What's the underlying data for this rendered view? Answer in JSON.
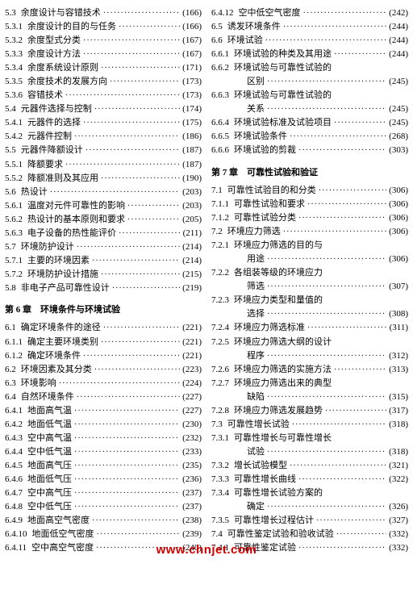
{
  "watermark": "www.chnjet.com",
  "columns": [
    {
      "items": [
        {
          "type": "entry",
          "num": "5.3",
          "title": "余度设计与容错技术",
          "page": "(166)"
        },
        {
          "type": "entry",
          "num": "5.3.1",
          "title": "余度设计的目的与任务",
          "page": "(166)"
        },
        {
          "type": "entry",
          "num": "5.3.2",
          "title": "余度型式分类",
          "page": "(167)"
        },
        {
          "type": "entry",
          "num": "5.3.3",
          "title": "余度设计方法",
          "page": "(167)"
        },
        {
          "type": "entry",
          "num": "5.3.4",
          "title": "余度系统设计原则",
          "page": "(171)"
        },
        {
          "type": "entry",
          "num": "5.3.5",
          "title": "余度技术的发展方向",
          "page": "(173)"
        },
        {
          "type": "entry",
          "num": "5.3.6",
          "title": "容错技术",
          "page": "(173)"
        },
        {
          "type": "entry",
          "num": "5.4",
          "title": "元器件选择与控制",
          "page": "(174)"
        },
        {
          "type": "entry",
          "num": "5.4.1",
          "title": "元器件的选择",
          "page": "(175)"
        },
        {
          "type": "entry",
          "num": "5.4.2",
          "title": "元器件控制",
          "page": "(186)"
        },
        {
          "type": "entry",
          "num": "5.5",
          "title": "元器件降额设计",
          "page": "(187)"
        },
        {
          "type": "entry",
          "num": "5.5.1",
          "title": "降额要求",
          "page": "(187)"
        },
        {
          "type": "entry",
          "num": "5.5.2",
          "title": "降额准则及其应用",
          "page": "(190)"
        },
        {
          "type": "entry",
          "num": "5.6",
          "title": "热设计",
          "page": "(203)"
        },
        {
          "type": "entry",
          "num": "5.6.1",
          "title": "温度对元件可靠性的影响",
          "page": "(203)"
        },
        {
          "type": "entry",
          "num": "5.6.2",
          "title": "热设计的基本原则和要求",
          "page": "(205)"
        },
        {
          "type": "entry",
          "num": "5.6.3",
          "title": "电子设备的热性能评价",
          "page": "(211)"
        },
        {
          "type": "entry",
          "num": "5.7",
          "title": "环境防护设计",
          "page": "(214)"
        },
        {
          "type": "entry",
          "num": "5.7.1",
          "title": "主要的环境因素",
          "page": "(214)"
        },
        {
          "type": "entry",
          "num": "5.7.2",
          "title": "环境防护设计措施",
          "page": "(215)"
        },
        {
          "type": "entry",
          "num": "5.8",
          "title": "非电子产品可靠性设计",
          "page": "(219)"
        },
        {
          "type": "chapter",
          "text": "第 6 章　环境条件与环境试验"
        },
        {
          "type": "entry",
          "num": "6.1",
          "title": "确定环境条件的途径",
          "page": "(221)"
        },
        {
          "type": "entry",
          "num": "6.1.1",
          "title": "确定主要环境类别",
          "page": "(221)"
        },
        {
          "type": "entry",
          "num": "6.1.2",
          "title": "确定环境条件",
          "page": "(221)"
        },
        {
          "type": "entry",
          "num": "6.2",
          "title": "环境因素及其分类",
          "page": "(223)"
        },
        {
          "type": "entry",
          "num": "6.3",
          "title": "环境影响",
          "page": "(224)"
        },
        {
          "type": "entry",
          "num": "6.4",
          "title": "自然环境条件",
          "page": "(227)"
        },
        {
          "type": "entry",
          "num": "6.4.1",
          "title": "地面高气温",
          "page": "(227)"
        },
        {
          "type": "entry",
          "num": "6.4.2",
          "title": "地面低气温",
          "page": "(230)"
        },
        {
          "type": "entry",
          "num": "6.4.3",
          "title": "空中高气温",
          "page": "(232)"
        },
        {
          "type": "entry",
          "num": "6.4.4",
          "title": "空中低气温",
          "page": "(233)"
        },
        {
          "type": "entry",
          "num": "6.4.5",
          "title": "地面高气压",
          "page": "(235)"
        },
        {
          "type": "entry",
          "num": "6.4.6",
          "title": "地面低气压",
          "page": "(236)"
        },
        {
          "type": "entry",
          "num": "6.4.7",
          "title": "空中高气压",
          "page": "(237)"
        },
        {
          "type": "entry",
          "num": "6.4.8",
          "title": "空中低气压",
          "page": "(237)"
        },
        {
          "type": "entry",
          "num": "6.4.9",
          "title": "地面高空气密度",
          "page": "(238)"
        },
        {
          "type": "entry",
          "num": "6.4.10",
          "title": "地面低空气密度",
          "page": "(239)"
        },
        {
          "type": "entry",
          "num": "6.4.11",
          "title": "空中高空气密度",
          "page": "(240)"
        }
      ]
    },
    {
      "items": [
        {
          "type": "entry",
          "num": "6.4.12",
          "title": "空中低空气密度",
          "page": "(242)"
        },
        {
          "type": "entry",
          "num": "6.5",
          "title": "诱发环境条件",
          "page": "(244)"
        },
        {
          "type": "entry",
          "num": "6.6",
          "title": "环境试验",
          "page": "(244)"
        },
        {
          "type": "entry",
          "num": "6.6.1",
          "title": "环境试验的种类及其用途",
          "page": "(244)"
        },
        {
          "type": "wrap",
          "num": "6.6.2",
          "line1": "环境试验与可靠性试验的",
          "line2": "区别",
          "page": "(245)"
        },
        {
          "type": "wrap",
          "num": "6.6.3",
          "line1": "环境试验与可靠性试验的",
          "line2": "关系",
          "page": "(245)"
        },
        {
          "type": "entry",
          "num": "6.6.4",
          "title": "环境试验标准及试验项目",
          "page": "(245)"
        },
        {
          "type": "entry",
          "num": "6.6.5",
          "title": "环境试验条件",
          "page": "(268)"
        },
        {
          "type": "entry",
          "num": "6.6.6",
          "title": "环境试验的剪裁",
          "page": "(303)"
        },
        {
          "type": "chapter",
          "text": "第 7 章　可靠性试验和验证"
        },
        {
          "type": "entry",
          "num": "7.1",
          "title": "可靠性试验目的和分类",
          "page": "(306)"
        },
        {
          "type": "entry",
          "num": "7.1.1",
          "title": "可靠性试验和要求",
          "page": "(306)"
        },
        {
          "type": "entry",
          "num": "7.1.2",
          "title": "可靠性试验分类",
          "page": "(306)"
        },
        {
          "type": "entry",
          "num": "7.2",
          "title": "环境应力筛选",
          "page": "(306)"
        },
        {
          "type": "wrap",
          "num": "7.2.1",
          "line1": "环境应力筛选的目的与",
          "line2": "用途",
          "page": "(306)"
        },
        {
          "type": "wrap",
          "num": "7.2.2",
          "line1": "各组装等级的环境应力",
          "line2": "筛选",
          "page": "(307)"
        },
        {
          "type": "wrap",
          "num": "7.2.3",
          "line1": "环境应力类型和量值的",
          "line2": "选择",
          "page": "(308)"
        },
        {
          "type": "entry",
          "num": "7.2.4",
          "title": "环境应力筛选标准",
          "page": "(311)"
        },
        {
          "type": "wrap",
          "num": "7.2.5",
          "line1": "环境应力筛选大纲的设计",
          "line2": "程序",
          "page": "(312)"
        },
        {
          "type": "entry",
          "num": "7.2.6",
          "title": "环境应力筛选的实施方法",
          "page": "(313)"
        },
        {
          "type": "wrap",
          "num": "7.2.7",
          "line1": "环境应力筛选出来的典型",
          "line2": "缺陷",
          "page": "(315)"
        },
        {
          "type": "entry",
          "num": "7.2.8",
          "title": "环境应力筛选发展趋势",
          "page": "(317)"
        },
        {
          "type": "entry",
          "num": "7.3",
          "title": "可靠性增长试验",
          "page": "(318)"
        },
        {
          "type": "wrap",
          "num": "7.3.1",
          "line1": "可靠性增长与可靠性增长",
          "line2": "试验",
          "page": "(318)"
        },
        {
          "type": "entry",
          "num": "7.3.2",
          "title": "增长试验模型",
          "page": "(321)"
        },
        {
          "type": "entry",
          "num": "7.3.3",
          "title": "可靠性增长曲线",
          "page": "(322)"
        },
        {
          "type": "wrap",
          "num": "7.3.4",
          "line1": "可靠性增长试验方案的",
          "line2": "确定",
          "page": "(326)"
        },
        {
          "type": "entry",
          "num": "7.3.5",
          "title": "可靠性增长过程估计",
          "page": "(327)"
        },
        {
          "type": "entry",
          "num": "7.4",
          "title": "可靠性鉴定试验和验收试验",
          "page": "(332)"
        },
        {
          "type": "entry",
          "num": "7.4.1",
          "title": "可靠性鉴定试验",
          "page": "(332)"
        }
      ]
    }
  ]
}
